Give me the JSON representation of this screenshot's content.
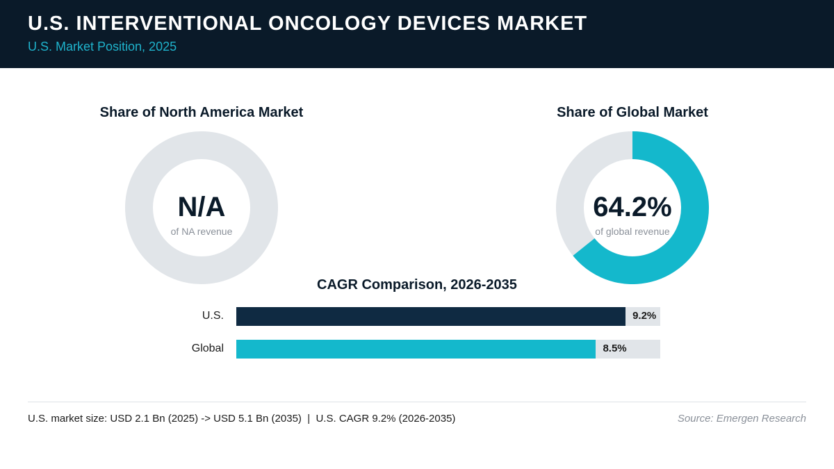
{
  "header": {
    "title": "U.S. INTERVENTIONAL ONCOLOGY DEVICES MARKET",
    "subtitle": "U.S. Market Position, 2025"
  },
  "chart_data": [
    {
      "type": "pie",
      "title": "Share of North America Market",
      "value_text": "N/A",
      "caption": "of NA revenue",
      "share": null,
      "colors": {
        "fill": "#14b8cc",
        "track": "#e1e5e9"
      }
    },
    {
      "type": "pie",
      "title": "Share of Global Market",
      "value_text": "64.2%",
      "caption": "of global revenue",
      "share": 64.2,
      "colors": {
        "fill": "#14b8cc",
        "track": "#e1e5e9"
      }
    },
    {
      "type": "bar",
      "title": "CAGR Comparison, 2026-2035",
      "categories": [
        "U.S.",
        "Global"
      ],
      "values": [
        9.2,
        8.5
      ],
      "value_labels": [
        "9.2%",
        "8.5%"
      ],
      "xlim": [
        0,
        10
      ],
      "colors": [
        "#0f2a42",
        "#14b8cc"
      ],
      "track_color": "#e1e5e9"
    }
  ],
  "footer": {
    "note": "U.S. market size: USD 2.1 Bn (2025) -> USD 5.1 Bn (2035)  |  U.S. CAGR 9.2% (2026-2035)",
    "source": "Source: Emergen Research"
  }
}
